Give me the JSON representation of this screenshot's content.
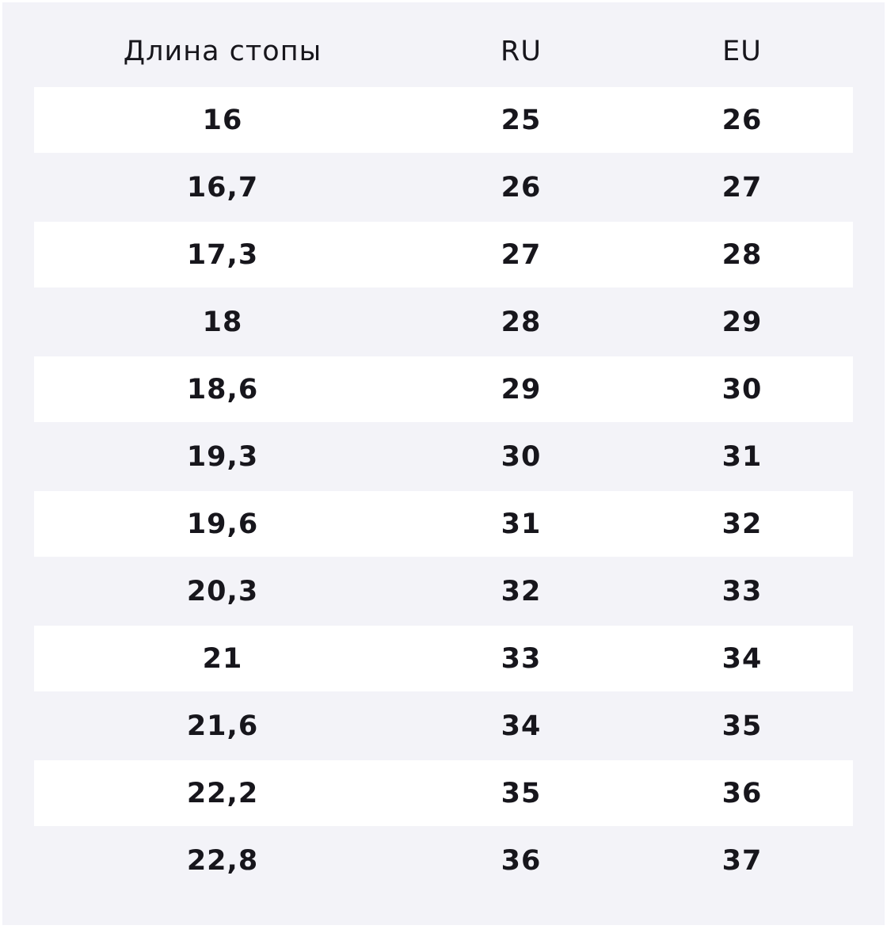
{
  "table": {
    "header": [
      "Длина стопы",
      "RU",
      "EU"
    ],
    "rows": [
      [
        "16",
        "25",
        "26"
      ],
      [
        "16,7",
        "26",
        "27"
      ],
      [
        "17,3",
        "27",
        "28"
      ],
      [
        "18",
        "28",
        "29"
      ],
      [
        "18,6",
        "29",
        "30"
      ],
      [
        "19,3",
        "30",
        "31"
      ],
      [
        "19,6",
        "31",
        "32"
      ],
      [
        "20,3",
        "32",
        "33"
      ],
      [
        "21",
        "33",
        "34"
      ],
      [
        "21,6",
        "34",
        "35"
      ],
      [
        "22,2",
        "35",
        "36"
      ],
      [
        "22,8",
        "36",
        "37"
      ]
    ]
  }
}
